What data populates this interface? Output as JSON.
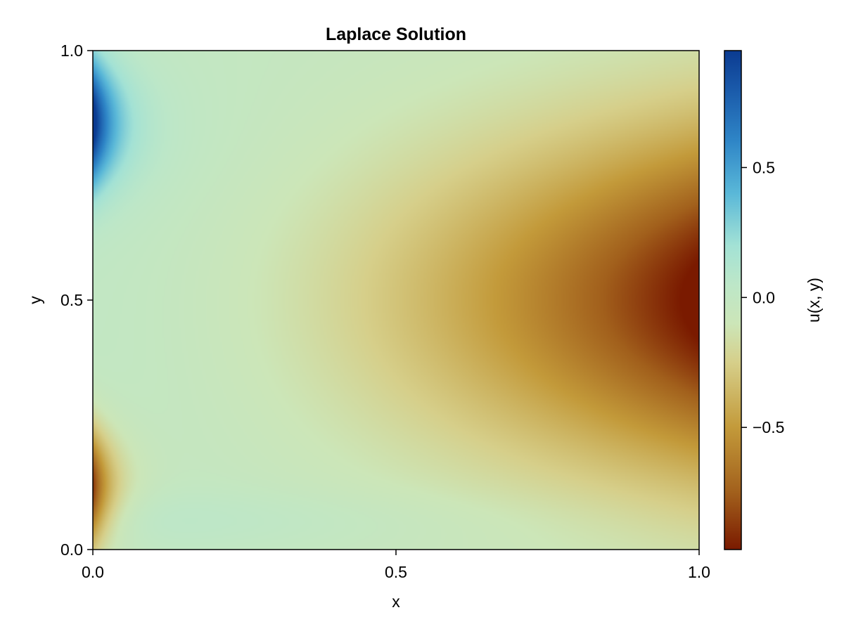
{
  "chart_data": {
    "type": "heatmap",
    "title": "Laplace Solution",
    "xlabel": "x",
    "ylabel": "y",
    "xlim": [
      0.0,
      1.0
    ],
    "ylim": [
      0.0,
      1.0
    ],
    "x_ticks": [
      "0.0",
      "0.5",
      "1.0"
    ],
    "y_ticks": [
      "0.0",
      "0.5",
      "1.0"
    ],
    "grid": false,
    "colorbar": {
      "label": "u(x, y)",
      "range": [
        -0.97,
        0.95
      ],
      "ticks": [
        {
          "value": 0.5,
          "label": "0.5"
        },
        {
          "value": 0.0,
          "label": "0.0"
        },
        {
          "value": -0.5,
          "label": "−0.5"
        }
      ],
      "colormap_stops": [
        {
          "value": -0.97,
          "color": "#7a1a00"
        },
        {
          "value": -0.75,
          "color": "#a2601c"
        },
        {
          "value": -0.5,
          "color": "#c39a3a"
        },
        {
          "value": -0.25,
          "color": "#d6cf8a"
        },
        {
          "value": -0.1,
          "color": "#cce6b8"
        },
        {
          "value": 0.05,
          "color": "#bde7c8"
        },
        {
          "value": 0.2,
          "color": "#a3e2d5"
        },
        {
          "value": 0.4,
          "color": "#5ab8d8"
        },
        {
          "value": 0.6,
          "color": "#2f86c7"
        },
        {
          "value": 0.8,
          "color": "#1a5aaa"
        },
        {
          "value": 0.95,
          "color": "#0b3b91"
        }
      ]
    },
    "field_description": "u(x,y) ≈ 0 over most of the domain; minimum near x=1, y=0.5 (≈ -0.97); maximum near x=0, y=0.9 (≈ 0.95); negative lobe near x=0, y=0.1 (≈ -0.9)."
  }
}
